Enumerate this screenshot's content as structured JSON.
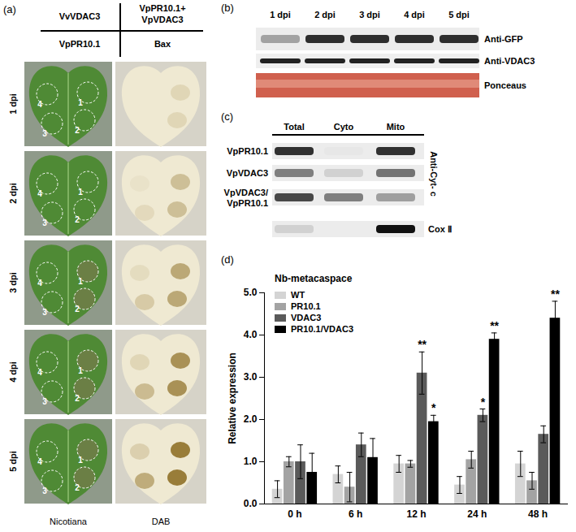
{
  "panel_labels": [
    "(a)",
    "(b)",
    "(c)",
    "(d)"
  ],
  "panel_a": {
    "treatments": {
      "top_left": [
        "VvVDAC3"
      ],
      "top_right": [
        "VpPR10.1+",
        "VpVDAC3"
      ],
      "bottom_left": [
        "VpPR10.1"
      ],
      "bottom_right": [
        "Bax"
      ]
    },
    "time_points": [
      "1 dpi",
      "2 dpi",
      "3 dpi",
      "4 dpi",
      "5 dpi"
    ],
    "spots": [
      1,
      2,
      3,
      4
    ],
    "columns": [
      "Nicotiana",
      "DAB"
    ]
  },
  "panel_b": {
    "lanes": [
      "1 dpi",
      "2 dpi",
      "3 dpi",
      "4 dpi",
      "5 dpi"
    ],
    "rows": [
      "Anti-GFP",
      "Anti-VDAC3",
      "Ponceaus"
    ]
  },
  "panel_c": {
    "columns": [
      "Total",
      "Cyto",
      "Mito"
    ],
    "rows": [
      [
        "VpPR10.1"
      ],
      [
        "VpVDAC3"
      ],
      [
        "VpVDAC3/",
        "VpPR10.1"
      ]
    ],
    "antibody": "Anti-Cyt- c",
    "control_row": "Cox Ⅱ"
  },
  "chart_data": {
    "type": "bar",
    "title": "Nb-metacaspace",
    "y_label": "Relative expression",
    "categories": [
      "0 h",
      "6 h",
      "12 h",
      "24 h",
      "48 h"
    ],
    "series": [
      {
        "name": "WT",
        "color": "#d4d4d4",
        "values": [
          0.35,
          0.7,
          0.95,
          0.45,
          0.95
        ],
        "errors": [
          0.2,
          0.2,
          0.2,
          0.2,
          0.3
        ]
      },
      {
        "name": "PR10.1",
        "color": "#a3a3a3",
        "values": [
          1.0,
          0.4,
          0.95,
          1.05,
          0.55
        ],
        "errors": [
          0.12,
          0.35,
          0.08,
          0.2,
          0.2
        ]
      },
      {
        "name": "VDAC3",
        "color": "#5a5a5a",
        "values": [
          1.0,
          1.4,
          3.1,
          2.1,
          1.65
        ],
        "errors": [
          0.4,
          0.28,
          0.5,
          0.15,
          0.2
        ],
        "annotations": [
          null,
          null,
          "**",
          "*",
          null
        ]
      },
      {
        "name": "PR10.1/VDAC3",
        "color": "#000000",
        "values": [
          0.75,
          1.1,
          1.95,
          3.9,
          4.4
        ],
        "errors": [
          0.45,
          0.45,
          0.15,
          0.15,
          0.4
        ],
        "annotations": [
          null,
          null,
          "*",
          "**",
          "**"
        ]
      }
    ],
    "ylim": [
      0,
      5
    ],
    "yticks": [
      {
        "value": 0,
        "label": "0.0"
      },
      {
        "value": 1,
        "label": "1.0"
      },
      {
        "value": 2,
        "label": "2.0"
      },
      {
        "value": 3,
        "label": "3.0"
      },
      {
        "value": 4,
        "label": "4.0"
      },
      {
        "value": 5,
        "label": "5.0"
      }
    ],
    "legend": "top-left"
  }
}
